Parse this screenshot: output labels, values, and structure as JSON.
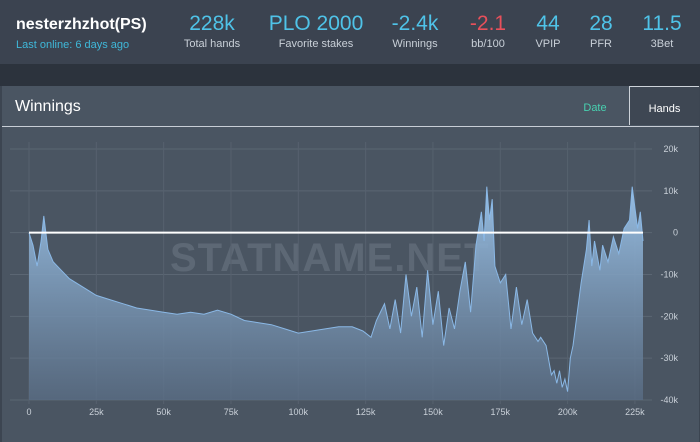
{
  "player": {
    "name": "nesterzhzhot(PS)",
    "last_online": "Last online: 6 days ago"
  },
  "stats": [
    {
      "value": "228k",
      "label": "Total hands"
    },
    {
      "value": "PLO 2000",
      "label": "Favorite stakes"
    },
    {
      "value": "-2.4k",
      "label": "Winnings"
    },
    {
      "value": "-2.1",
      "label": "bb/100"
    },
    {
      "value": "44",
      "label": "VPIP"
    },
    {
      "value": "28",
      "label": "PFR"
    },
    {
      "value": "11.5",
      "label": "3Bet"
    }
  ],
  "panel": {
    "title": "Winnings",
    "tabs": {
      "date": "Date",
      "hands": "Hands"
    },
    "active_tab": "Hands"
  },
  "watermark": "STATNAME.NET",
  "colors": {
    "accent": "#4fc3e8",
    "negative": "#e8505b",
    "tab_date": "#48d0b0",
    "series_line": "#8ab8e6"
  },
  "chart_data": {
    "type": "area",
    "xlabel": "",
    "ylabel": "",
    "xlim": [
      0,
      228000
    ],
    "ylim": [
      -40000,
      20000
    ],
    "x_ticks": [
      0,
      25000,
      50000,
      75000,
      100000,
      125000,
      150000,
      175000,
      200000,
      225000
    ],
    "x_tick_labels": [
      "0",
      "25k",
      "50k",
      "75k",
      "100k",
      "125k",
      "150k",
      "175k",
      "200k",
      "225k"
    ],
    "y_ticks": [
      20000,
      10000,
      0,
      -10000,
      -20000,
      -30000,
      -40000
    ],
    "y_tick_labels": [
      "20k",
      "10k",
      "0",
      "-10k",
      "-20k",
      "-30k",
      "-40k"
    ],
    "grid": true,
    "series": [
      {
        "x": [
          0,
          1500,
          3000,
          4500,
          5500,
          7000,
          9000,
          12000,
          15000,
          20000,
          25000,
          30000,
          35000,
          40000,
          45000,
          50000,
          55000,
          60000,
          65000,
          70000,
          75000,
          80000,
          85000,
          90000,
          95000,
          100000,
          105000,
          110000,
          115000,
          120000,
          124000,
          127000,
          129000,
          132000,
          134000,
          136000,
          138000,
          140000,
          142000,
          144000,
          146000,
          148000,
          150000,
          152000,
          154000,
          156000,
          158000,
          160000,
          162000,
          164000,
          166000,
          168000,
          169000,
          170000,
          171000,
          172000,
          173000,
          175000,
          177000,
          179000,
          181000,
          183000,
          185000,
          187000,
          189000,
          190000,
          192000,
          194000,
          195000,
          196000,
          197000,
          198000,
          199000,
          200000,
          201000,
          202000,
          203000,
          205000,
          207000,
          208000,
          209000,
          210000,
          212000,
          213000,
          215000,
          217000,
          219000,
          221000,
          223000,
          224000,
          225000,
          226000,
          227000,
          228000
        ],
        "y": [
          0,
          -3000,
          -8000,
          -2000,
          4000,
          -4000,
          -7000,
          -9000,
          -11000,
          -13000,
          -15000,
          -16000,
          -17000,
          -18000,
          -18500,
          -19000,
          -19500,
          -19000,
          -19500,
          -18500,
          -19500,
          -21000,
          -21500,
          -22000,
          -23000,
          -24000,
          -23500,
          -23000,
          -22500,
          -22500,
          -23500,
          -25000,
          -21000,
          -17000,
          -23000,
          -16000,
          -24000,
          -10000,
          -20000,
          -13000,
          -25000,
          -9000,
          -22000,
          -14000,
          -27000,
          -18000,
          -23000,
          -14000,
          -7000,
          -19000,
          -3000,
          5000,
          -2000,
          11000,
          3000,
          8000,
          -8000,
          -12000,
          -10000,
          -23000,
          -13000,
          -22000,
          -16000,
          -24000,
          -26000,
          -25000,
          -27000,
          -34000,
          -33000,
          -36000,
          -33000,
          -37000,
          -35000,
          -38000,
          -30000,
          -27000,
          -22000,
          -12000,
          -4000,
          3000,
          -8000,
          -2000,
          -9000,
          -3000,
          -7000,
          -1000,
          -5000,
          1000,
          3000,
          11000,
          6000,
          1000,
          5000,
          -2000
        ]
      }
    ]
  }
}
